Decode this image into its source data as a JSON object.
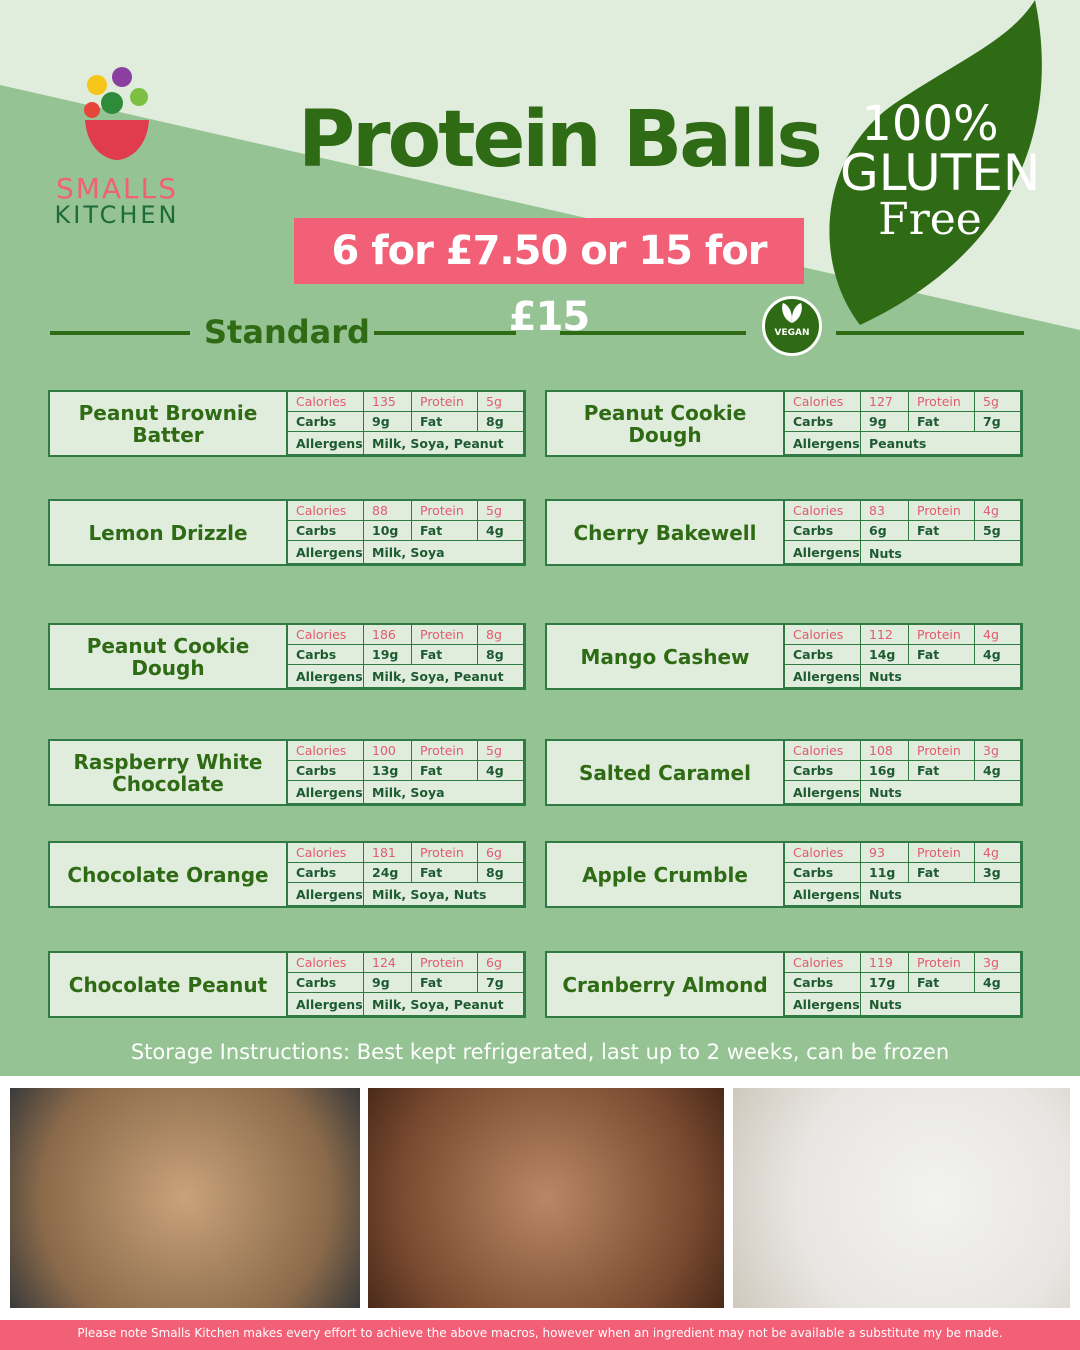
{
  "header": {
    "title": "Protein Balls",
    "price": "6 for £7.50 or 15 for £15",
    "logo_top": "SMALLS",
    "logo_bottom": "KITCHEN",
    "badge_line1": "100%",
    "badge_line2": "GLUTEN",
    "badge_line3": "Free"
  },
  "sections": {
    "left": "Standard",
    "vegan_badge": "VEGAN"
  },
  "labels": {
    "calories": "Calories",
    "protein": "Protein",
    "carbs": "Carbs",
    "fat": "Fat",
    "allergens": "Allergens"
  },
  "left_items": [
    {
      "name": "Peanut Brownie Batter",
      "calories": "135",
      "protein": "5g",
      "carbs": "9g",
      "fat": "8g",
      "allergens": "Milk, Soya, Peanut"
    },
    {
      "name": "Lemon Drizzle",
      "calories": "88",
      "protein": "5g",
      "carbs": "10g",
      "fat": "4g",
      "allergens": "Milk, Soya"
    },
    {
      "name": "Peanut Cookie Dough",
      "calories": "186",
      "protein": "8g",
      "carbs": "19g",
      "fat": "8g",
      "allergens": "Milk, Soya, Peanut"
    },
    {
      "name": "Raspberry White Chocolate",
      "calories": "100",
      "protein": "5g",
      "carbs": "13g",
      "fat": "4g",
      "allergens": "Milk, Soya"
    },
    {
      "name": "Chocolate Orange",
      "calories": "181",
      "protein": "6g",
      "carbs": "24g",
      "fat": "8g",
      "allergens": "Milk, Soya, Nuts"
    },
    {
      "name": "Chocolate Peanut",
      "calories": "124",
      "protein": "6g",
      "carbs": "9g",
      "fat": "7g",
      "allergens": "Milk, Soya, Peanut"
    }
  ],
  "right_items": [
    {
      "name": "Peanut Cookie Dough",
      "calories": "127",
      "protein": "5g",
      "carbs": "9g",
      "fat": "7g",
      "allergens": "Peanuts"
    },
    {
      "name": "Cherry Bakewell",
      "calories": "83",
      "protein": "4g",
      "carbs": "6g",
      "fat": "5g",
      "allergens": "",
      "overlay": "Nuts"
    },
    {
      "name": "Mango Cashew",
      "calories": "112",
      "protein": "4g",
      "carbs": "14g",
      "fat": "4g",
      "allergens": "Nuts"
    },
    {
      "name": "Salted Caramel",
      "calories": "108",
      "protein": "3g",
      "carbs": "16g",
      "fat": "4g",
      "allergens": "Nuts"
    },
    {
      "name": "Apple Crumble",
      "calories": "93",
      "protein": "4g",
      "carbs": "11g",
      "fat": "3g",
      "allergens": "Nuts"
    },
    {
      "name": "Cranberry Almond",
      "calories": "119",
      "protein": "3g",
      "carbs": "17g",
      "fat": "4g",
      "allergens": "Nuts"
    }
  ],
  "storage": "Storage Instructions: Best kept refrigerated, last up to 2 weeks, can be frozen",
  "footer": "Please note Smalls Kitchen makes every effort to achieve the above macros, however when an ingredient may not be available a substitute my be made.",
  "colors": {
    "dark_green": "#2e6b14",
    "light_bg": "#e0ecdc",
    "mid_green": "#95c393",
    "pink": "#f26077"
  }
}
